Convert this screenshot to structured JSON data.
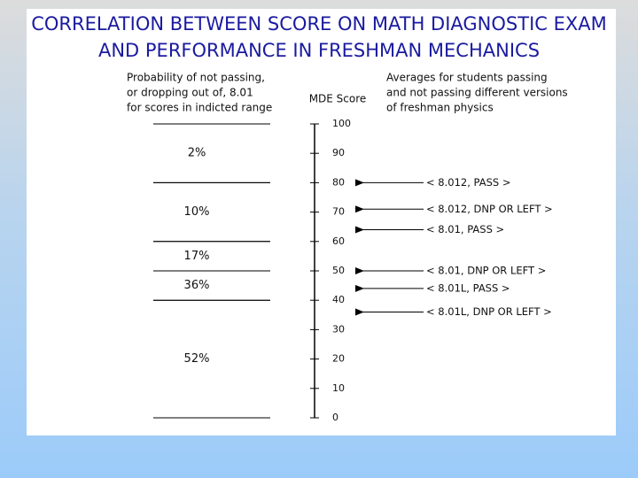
{
  "title": [
    "CORRELATION BETWEEN SCORE ON MATH DIAGNOSTIC EXAM",
    "AND PERFORMANCE IN FRESHMAN MECHANICS"
  ],
  "left_header": [
    "Probability of not passing,",
    "or dropping out of, 8.01",
    "for scores in indicted range"
  ],
  "right_header": [
    "Averages for students passing",
    "and not passing different versions",
    "of freshman physics"
  ],
  "axis": {
    "label": "MDE Score",
    "ylim": [
      0,
      100
    ],
    "yticks": [
      0,
      10,
      20,
      30,
      40,
      50,
      60,
      70,
      80,
      90,
      100
    ]
  },
  "ranges": [
    {
      "label": "2%",
      "from": 80,
      "to": 100
    },
    {
      "label": "10%",
      "from": 60,
      "to": 80
    },
    {
      "label": "17%",
      "from": 50,
      "to": 60
    },
    {
      "label": "36%",
      "from": 40,
      "to": 50
    },
    {
      "label": "52%",
      "from": 0,
      "to": 40
    }
  ],
  "arrows": [
    {
      "label": "< 8.012, PASS >",
      "value": 80
    },
    {
      "label": "< 8.012, DNP OR LEFT >",
      "value": 71
    },
    {
      "label": "< 8.01, PASS >",
      "value": 64
    },
    {
      "label": "< 8.01, DNP OR LEFT >",
      "value": 50
    },
    {
      "label": "< 8.01L, PASS >",
      "value": 44
    },
    {
      "label": "< 8.01L, DNP OR LEFT >",
      "value": 36
    }
  ]
}
